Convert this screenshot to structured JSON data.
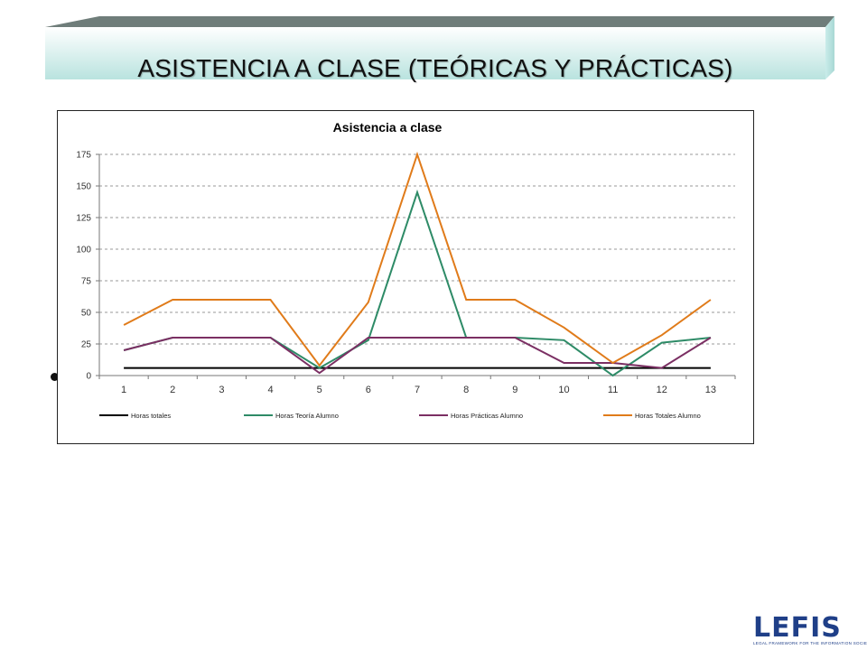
{
  "slide": {
    "title": "ASISTENCIA A CLASE (TEÓRICAS Y PRÁCTICAS)"
  },
  "logo": {
    "text": "LEFIS",
    "tagline": "LEGAL FRAMEWORK FOR THE INFORMATION SOCIETY"
  },
  "colors": {
    "banner_top": "#6f7d7a",
    "banner_face_light": "#ffffff",
    "banner_face_dark": "#b9e3df",
    "logo": "#1f3f88"
  },
  "chart_data": {
    "type": "line",
    "title": "Asistencia a clase",
    "xlabel": "",
    "ylabel": "",
    "categories": [
      "1",
      "2",
      "3",
      "4",
      "5",
      "6",
      "7",
      "8",
      "9",
      "10",
      "11",
      "12",
      "13"
    ],
    "ylim": [
      0,
      175
    ],
    "yticks": [
      0,
      25,
      50,
      75,
      100,
      125,
      150,
      175
    ],
    "grid": true,
    "legend_position": "bottom",
    "series": [
      {
        "name": "Horas totales",
        "color": "#000000",
        "values": [
          6,
          6,
          6,
          6,
          6,
          6,
          6,
          6,
          6,
          6,
          6,
          6,
          6
        ]
      },
      {
        "name": "Horas Teoría Alumno",
        "color": "#2e8b67",
        "values": [
          20,
          30,
          30,
          30,
          6,
          28,
          145,
          30,
          30,
          28,
          0,
          26,
          30
        ]
      },
      {
        "name": "Horas Prácticas Alumno",
        "color": "#7b2f63",
        "values": [
          20,
          30,
          30,
          30,
          2,
          30,
          30,
          30,
          30,
          10,
          10,
          6,
          30
        ]
      },
      {
        "name": "Horas Totales Alumno",
        "color": "#e07b1a",
        "values": [
          40,
          60,
          60,
          60,
          8,
          58,
          175,
          60,
          60,
          38,
          10,
          32,
          60
        ]
      }
    ]
  }
}
